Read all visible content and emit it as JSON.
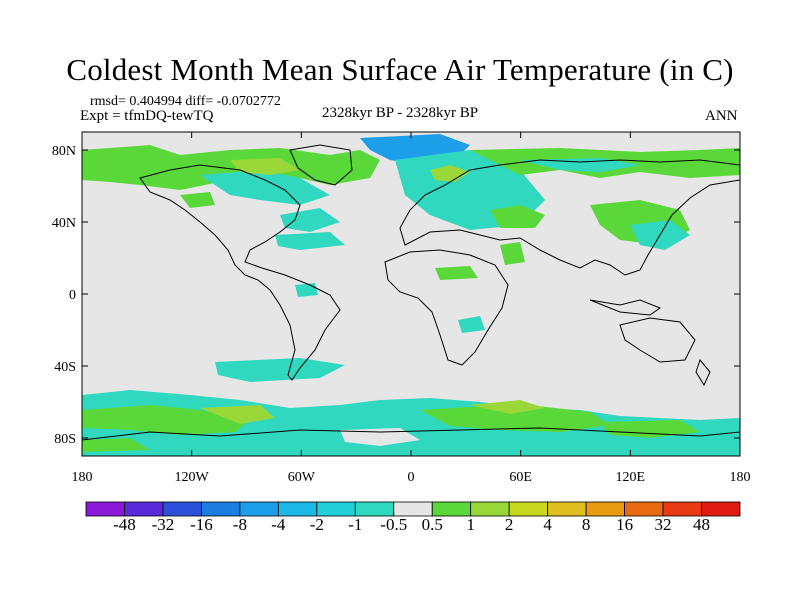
{
  "title": "Coldest Month Mean Surface Air Temperature (in C)",
  "stats": "rmsd= 0.404994 diff= -0.0702772",
  "experiment": "Expt = tfmDQ-tewTQ",
  "period": "2328kyr BP - 2328kyr BP",
  "season": "ANN",
  "lat_ticks": [
    "80N",
    "40N",
    "0",
    "40S",
    "80S"
  ],
  "lon_ticks": [
    "180",
    "120W",
    "60W",
    "0",
    "60E",
    "120E",
    "180"
  ],
  "colorbar": {
    "labels": [
      "-48",
      "-32",
      "-16",
      "-8",
      "-4",
      "-2",
      "-1",
      "-0.5",
      "0.5",
      "1",
      "2",
      "4",
      "8",
      "16",
      "32",
      "48"
    ],
    "colors": [
      "#8a1ad8",
      "#5a2ad8",
      "#2a4fd8",
      "#1c7ee0",
      "#1c9ee8",
      "#1cb8e8",
      "#20cfd8",
      "#30d8c0",
      "#e6e6e6",
      "#5ad83a",
      "#9ad83a",
      "#c8d820",
      "#e0c020",
      "#e89a10",
      "#e86a10",
      "#e83a10",
      "#e01a10"
    ]
  }
}
